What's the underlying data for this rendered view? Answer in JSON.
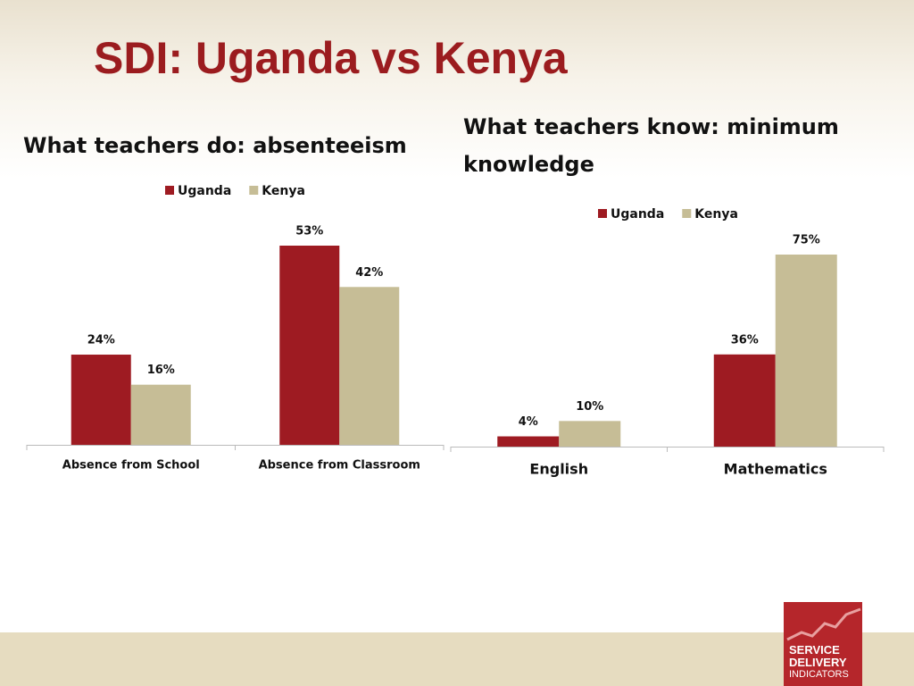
{
  "title": "SDI: Uganda vs Kenya",
  "chart_data": [
    {
      "type": "bar",
      "title": "What teachers do: absenteeism",
      "categories": [
        "Absence from School",
        "Absence from Classroom"
      ],
      "series": [
        {
          "name": "Uganda",
          "color": "#9e1b22",
          "values": [
            24,
            53
          ],
          "value_labels": [
            "24%",
            "53%"
          ]
        },
        {
          "name": "Kenya",
          "color": "#c6bd96",
          "values": [
            16,
            42
          ],
          "value_labels": [
            "16%",
            "42%"
          ]
        }
      ],
      "legend": "top"
    },
    {
      "type": "bar",
      "title": "What teachers know: minimum knowledge",
      "categories": [
        "English",
        "Mathematics"
      ],
      "series": [
        {
          "name": "Uganda",
          "color": "#9e1b22",
          "values": [
            4,
            36
          ],
          "value_labels": [
            "4%",
            "36%"
          ]
        },
        {
          "name": "Kenya",
          "color": "#c6bd96",
          "values": [
            10,
            75
          ],
          "value_labels": [
            "10%",
            "75%"
          ]
        }
      ],
      "legend": "top"
    }
  ],
  "logo": {
    "lines": [
      "SERVICE",
      "DELIVERY",
      "INDICATORS"
    ]
  }
}
